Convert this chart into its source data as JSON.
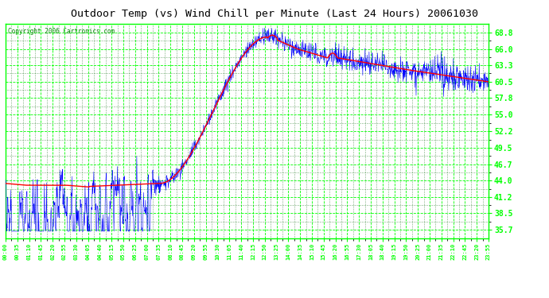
{
  "title": "Outdoor Temp (vs) Wind Chill per Minute (Last 24 Hours) 20061030",
  "copyright": "Copyright 2006 Cartronics.com",
  "yticks": [
    35.7,
    38.5,
    41.2,
    44.0,
    46.7,
    49.5,
    52.2,
    55.0,
    57.8,
    60.5,
    63.3,
    66.0,
    68.8
  ],
  "ymin": 34.3,
  "ymax": 70.2,
  "xtick_labels": [
    "00:00",
    "00:35",
    "01:10",
    "01:45",
    "02:20",
    "02:55",
    "03:30",
    "04:05",
    "04:40",
    "05:15",
    "05:50",
    "06:25",
    "07:00",
    "07:35",
    "08:10",
    "08:45",
    "09:20",
    "09:55",
    "10:30",
    "11:05",
    "11:40",
    "12:15",
    "12:50",
    "13:25",
    "14:00",
    "14:35",
    "15:10",
    "15:45",
    "16:20",
    "16:55",
    "17:30",
    "18:05",
    "18:40",
    "19:15",
    "19:50",
    "20:25",
    "21:00",
    "21:35",
    "22:10",
    "22:45",
    "23:20",
    "23:55"
  ],
  "plot_bg_color": "#ffffff",
  "grid_color_major": "#00ff00",
  "grid_color_minor": "#006600",
  "line_color_blue": "#0000ff",
  "line_color_red": "#ff0000",
  "title_color": "#000000",
  "tick_label_color": "#00cc00",
  "outer_bg": "#ffffff",
  "copyright_color": "#008800"
}
